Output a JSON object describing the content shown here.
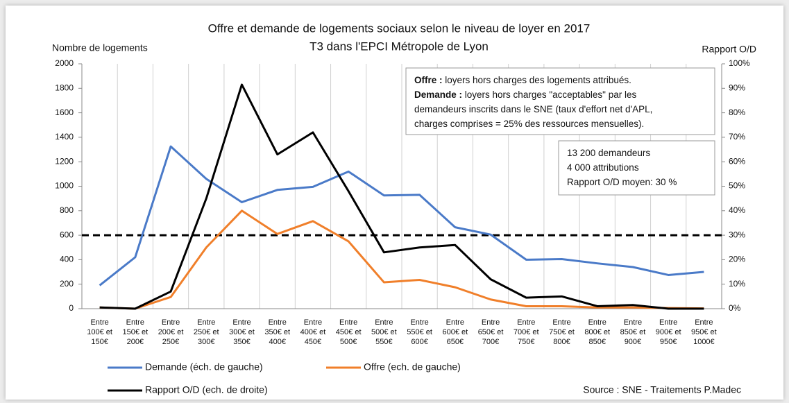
{
  "chart_data": {
    "type": "line",
    "title": "Offre et demande de logements sociaux selon le niveau de loyer en 2017",
    "subtitle": "T3 dans l'EPCI Métropole de Lyon",
    "y_label": "Nombre de logements",
    "y2_label": "Rapport O/D",
    "categories": [
      "Entre 100€ et 150€",
      "Entre 150€ et 200€",
      "Entre 200€ et 250€",
      "Entre 250€ et 300€",
      "Entre 300€ et 350€",
      "Entre 350€ et 400€",
      "Entre 400€ et 450€",
      "Entre 450€ et 500€",
      "Entre 500€ et 550€",
      "Entre 550€ et 600€",
      "Entre 600€ et 650€",
      "Entre 650€ et 700€",
      "Entre 700€ et 750€",
      "Entre 750€ et 800€",
      "Entre 800€ et 850€",
      "Entre 850€ et 900€",
      "Entre 900€ et 950€",
      "Entre 950€ et 1000€"
    ],
    "series": [
      {
        "name": "Demande (éch. de gauche)",
        "color": "#4a7ac8",
        "values": [
          190,
          420,
          1325,
          1060,
          870,
          970,
          995,
          1120,
          925,
          930,
          665,
          605,
          400,
          405,
          370,
          340,
          275,
          300
        ]
      },
      {
        "name": "Offre (ech. de gauche)",
        "color": "#f07f2a",
        "values": [
          10,
          0,
          95,
          500,
          800,
          610,
          715,
          550,
          215,
          235,
          175,
          75,
          20,
          20,
          10,
          10,
          5,
          2
        ]
      },
      {
        "name": "Rapport O/D (ech. de droite)",
        "color": "#000000",
        "axis": "y2",
        "values": [
          0.5,
          0,
          7,
          45,
          91.5,
          63,
          72,
          48,
          23,
          25,
          26,
          12,
          4.5,
          5,
          1,
          1.5,
          0,
          0
        ]
      }
    ],
    "reference_line": {
      "value": 30,
      "axis": "y2"
    },
    "ylim": [
      0,
      2000
    ],
    "yticks": [
      0,
      200,
      400,
      600,
      800,
      1000,
      1200,
      1400,
      1600,
      1800,
      2000
    ],
    "y2lim": [
      0,
      100
    ],
    "y2ticks": [
      {
        "value": 0,
        "label": "0%"
      },
      {
        "value": 10,
        "label": "10%"
      },
      {
        "value": 20,
        "label": "20%"
      },
      {
        "value": 30,
        "label": "30%"
      },
      {
        "value": 40,
        "label": "40%"
      },
      {
        "value": 50,
        "label": "50%"
      },
      {
        "value": 60,
        "label": "60%"
      },
      {
        "value": 70,
        "label": "70%"
      },
      {
        "value": 80,
        "label": "80%"
      },
      {
        "value": 90,
        "label": "90%"
      },
      {
        "value": 100,
        "label": "100%"
      }
    ],
    "annotations": [
      {
        "lines": [
          {
            "bold": "Offre :",
            "text": " loyers hors charges des logements attribués."
          },
          {
            "bold": "Demande :",
            "text": " loyers hors charges \"acceptables\" par les"
          },
          {
            "text": "demandeurs inscrits dans le SNE (taux d'effort net d'APL,"
          },
          {
            "text": "charges comprises = 25% des ressources mensuelles)."
          }
        ]
      },
      {
        "lines": [
          {
            "text": "13 200 demandeurs"
          },
          {
            "text": "4 000 attributions"
          },
          {
            "text": "Rapport O/D moyen: 30 %"
          }
        ]
      }
    ],
    "source": "Source : SNE - Traitements P.Madec"
  }
}
